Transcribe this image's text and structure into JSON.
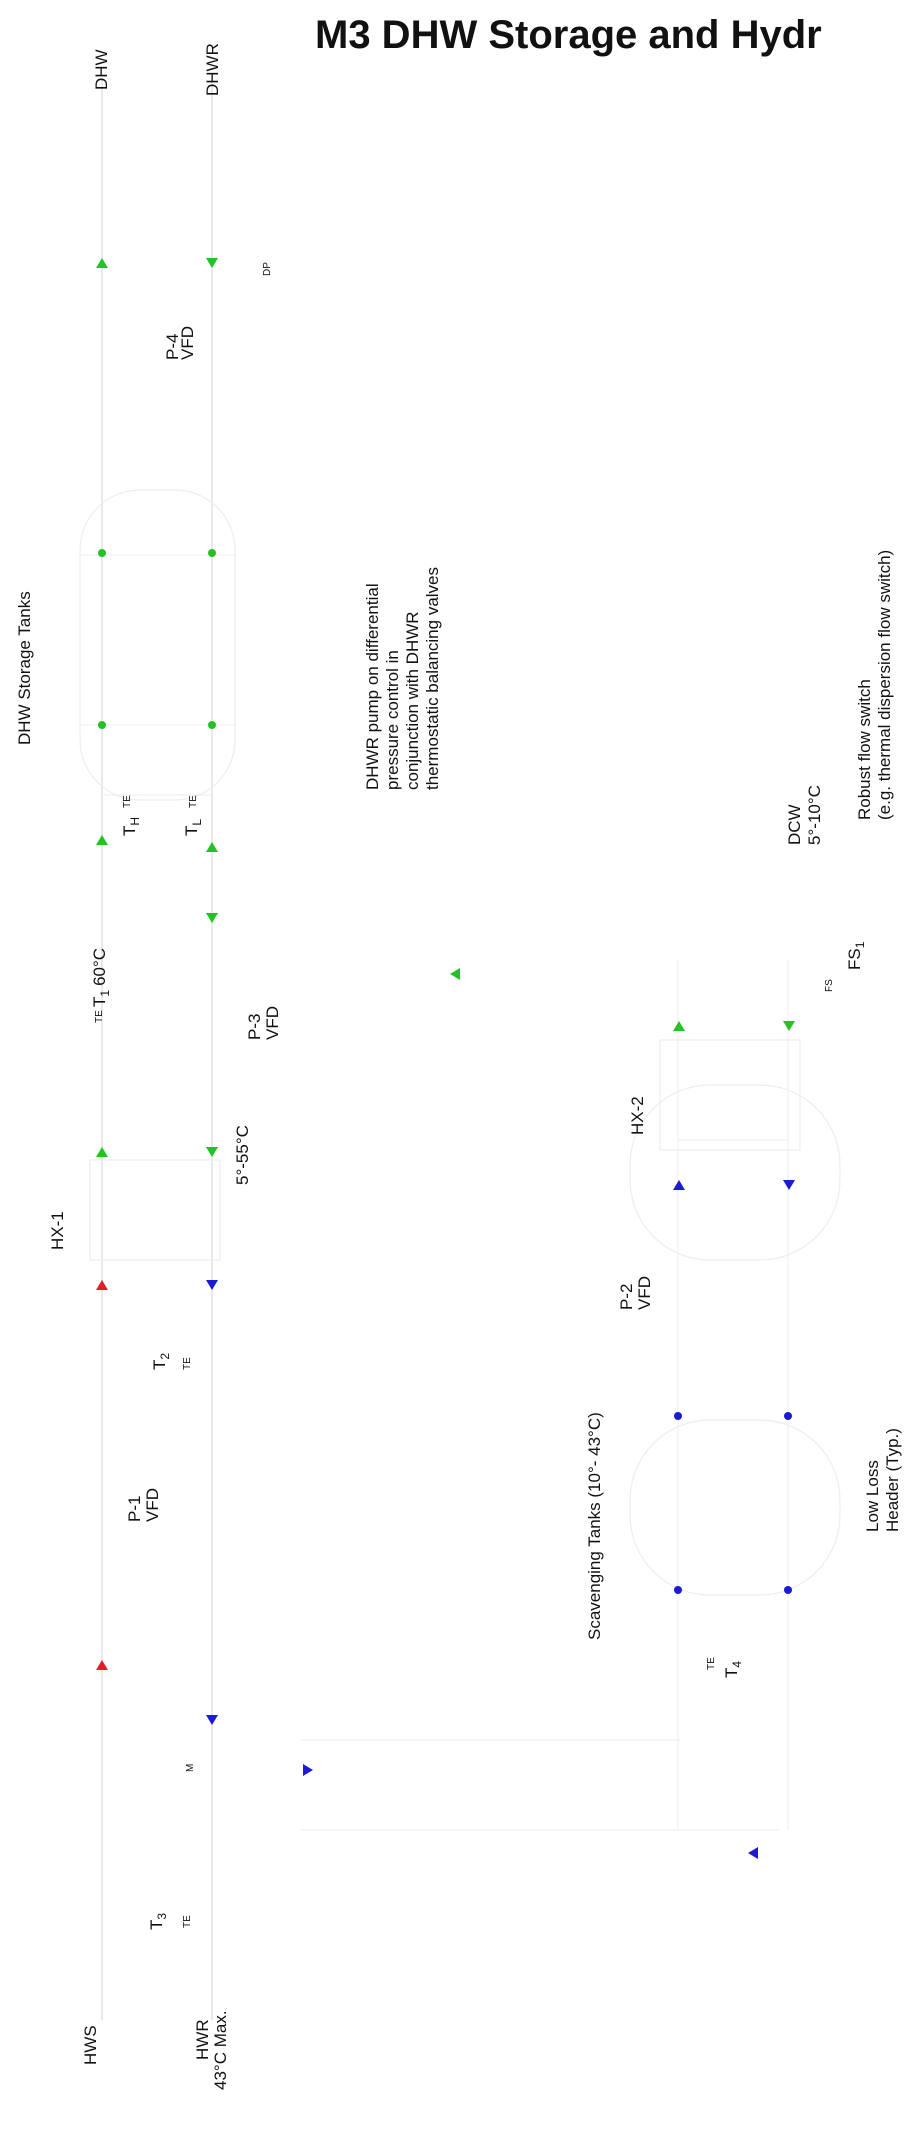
{
  "title": "M3 DHW Storage and Hydr",
  "labels": {
    "dhw": "DHW",
    "dhwr": "DHWR",
    "dp": "DP",
    "p4": "P-4",
    "p4_vfd": "VFD",
    "dhw_storage_tanks": "DHW Storage Tanks",
    "dhwr_note_1": "DHWR pump on differential",
    "dhwr_note_2": "pressure control in",
    "dhwr_note_3": "conjunction with DHWR",
    "dhwr_note_4": "thermostatic balancing valves",
    "th": "T",
    "th_sub": "H",
    "th_te": "TE",
    "tl": "T",
    "tl_sub": "L",
    "tl_te": "TE",
    "dcw": "DCW",
    "dcw_temp": "5°-10°C",
    "flow_switch_1": "Robust flow switch",
    "flow_switch_2": "(e.g. thermal dispersion flow switch)",
    "t1_te": "TE",
    "t1": "T",
    "t1_sub": "1",
    "t1_temp": "60°C",
    "p3": "P-3",
    "p3_vfd": "VFD",
    "fs": "FS",
    "fs1": "FS",
    "fs1_sub": "1",
    "hx1": "HX-1",
    "temp_range": "5°-55°C",
    "hx2": "HX-2",
    "t2": "T",
    "t2_sub": "2",
    "t2_te": "TE",
    "p2": "P-2",
    "p2_vfd": "VFD",
    "p1": "P-1",
    "p1_vfd": "VFD",
    "scavenging_tanks": "Scavenging Tanks (10°- 43°C)",
    "low_loss_1": "Low Loss",
    "low_loss_2": "Header (Typ.)",
    "t4_te": "TE",
    "t4": "T",
    "t4_sub": "4",
    "m": "M",
    "t3": "T",
    "t3_sub": "3",
    "t3_te": "TE",
    "hws": "HWS",
    "hwr": "HWR",
    "hwr_max": "43°C Max."
  },
  "colors": {
    "supply_hot": "#e31e24",
    "return_cold": "#1b1bd6",
    "dhw_green": "#22c322",
    "scavenging_blue": "#1b1bd6"
  }
}
